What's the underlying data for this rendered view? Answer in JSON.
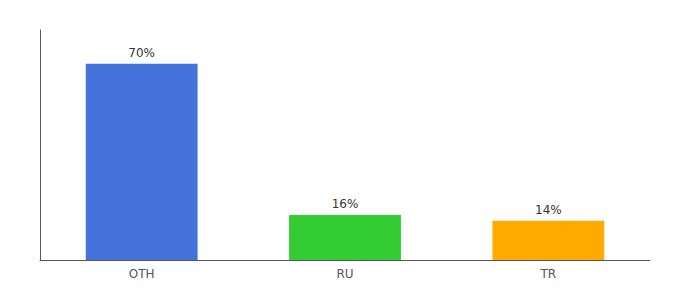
{
  "chart_data": {
    "type": "bar",
    "categories": [
      "OTH",
      "RU",
      "TR"
    ],
    "values": [
      70,
      16,
      14
    ],
    "value_labels": [
      "70%",
      "16%",
      "14%"
    ],
    "data_labels": true,
    "colors": [
      "#4472db",
      "#33cc33",
      "#ffaa00"
    ],
    "ylim": [
      0,
      82
    ],
    "grid": false,
    "tick_labels": "x"
  }
}
